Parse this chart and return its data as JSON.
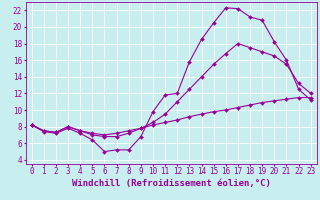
{
  "xlabel": "Windchill (Refroidissement éolien,°C)",
  "bg_color": "#c8eef0",
  "line_color": "#990099",
  "grid_color": "#ffffff",
  "xlim": [
    -0.5,
    23.5
  ],
  "ylim": [
    3.5,
    23.0
  ],
  "xticks": [
    0,
    1,
    2,
    3,
    4,
    5,
    6,
    7,
    8,
    9,
    10,
    11,
    12,
    13,
    14,
    15,
    16,
    17,
    18,
    19,
    20,
    21,
    22,
    23
  ],
  "yticks": [
    4,
    6,
    8,
    10,
    12,
    14,
    16,
    18,
    20,
    22
  ],
  "curve1_x": [
    0,
    1,
    2,
    3,
    4,
    5,
    6,
    7,
    8,
    9,
    10,
    11,
    12,
    13,
    14,
    15,
    16,
    17,
    18,
    19,
    20,
    21,
    22,
    23
  ],
  "curve1_y": [
    8.2,
    7.4,
    7.2,
    7.8,
    7.2,
    6.4,
    5.0,
    5.2,
    5.2,
    6.8,
    9.8,
    11.8,
    12.0,
    15.8,
    18.5,
    20.5,
    22.3,
    22.2,
    21.2,
    20.8,
    18.2,
    16.0,
    12.5,
    11.2
  ],
  "curve2_x": [
    0,
    1,
    2,
    3,
    4,
    5,
    6,
    7,
    8,
    9,
    10,
    11,
    12,
    13,
    14,
    15,
    16,
    17,
    18,
    19,
    20,
    21,
    22,
    23
  ],
  "curve2_y": [
    8.2,
    7.5,
    7.3,
    8.0,
    7.5,
    7.0,
    6.8,
    6.8,
    7.2,
    7.8,
    8.5,
    9.5,
    11.0,
    12.5,
    14.0,
    15.5,
    16.8,
    18.0,
    17.5,
    17.0,
    16.5,
    15.5,
    13.2,
    12.0
  ],
  "curve3_x": [
    0,
    1,
    2,
    3,
    4,
    5,
    6,
    7,
    8,
    9,
    10,
    11,
    12,
    13,
    14,
    15,
    16,
    17,
    18,
    19,
    20,
    21,
    22,
    23
  ],
  "curve3_y": [
    8.2,
    7.5,
    7.3,
    8.0,
    7.5,
    7.2,
    7.0,
    7.2,
    7.5,
    7.8,
    8.2,
    8.5,
    8.8,
    9.2,
    9.5,
    9.8,
    10.0,
    10.3,
    10.6,
    10.9,
    11.1,
    11.3,
    11.5,
    11.5
  ],
  "marker": "D",
  "markersize": 2.0,
  "linewidth": 0.8,
  "xlabel_fontsize": 6.5,
  "tick_fontsize": 5.5
}
